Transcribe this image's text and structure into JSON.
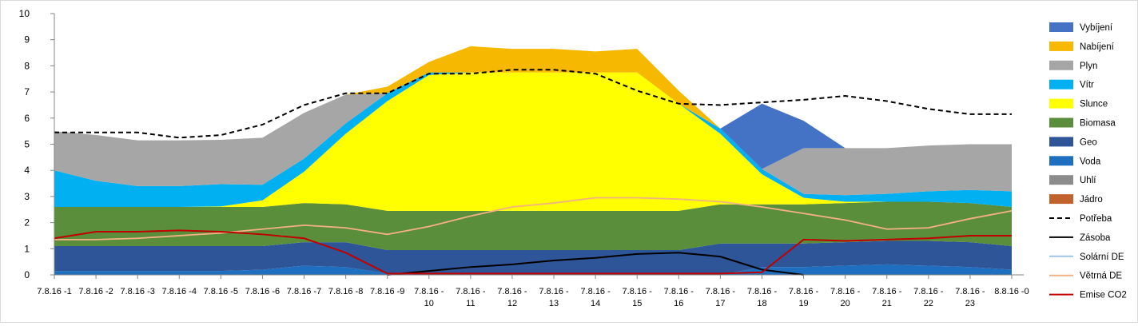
{
  "chart_data": {
    "type": "area",
    "title": "",
    "xlabel": "",
    "ylabel": "",
    "ylim": [
      0,
      10
    ],
    "yticks": [
      "0",
      "1",
      "2",
      "3",
      "4",
      "5",
      "6",
      "7",
      "8",
      "9",
      "10"
    ],
    "grid": false,
    "legend_position": "right",
    "categories": [
      [
        "7.8.16 -1"
      ],
      [
        "7.8.16 -2"
      ],
      [
        "7.8.16 -3"
      ],
      [
        "7.8.16 -4"
      ],
      [
        "7.8.16 -5"
      ],
      [
        "7.8.16 -6"
      ],
      [
        "7.8.16 -7"
      ],
      [
        "7.8.16 -8"
      ],
      [
        "7.8.16 -9"
      ],
      [
        "7.8.16 -",
        "10"
      ],
      [
        "7.8.16 -",
        "11"
      ],
      [
        "7.8.16 -",
        "12"
      ],
      [
        "7.8.16 -",
        "13"
      ],
      [
        "7.8.16 -",
        "14"
      ],
      [
        "7.8.16 -",
        "15"
      ],
      [
        "7.8.16 -",
        "16"
      ],
      [
        "7.8.16 -",
        "17"
      ],
      [
        "7.8.16 -",
        "18"
      ],
      [
        "7.8.16 -",
        "19"
      ],
      [
        "7.8.16 -",
        "20"
      ],
      [
        "7.8.16 -",
        "21"
      ],
      [
        "7.8.16 -",
        "22"
      ],
      [
        "7.8.16 -",
        "23"
      ],
      [
        "8.8.16 -0"
      ]
    ],
    "stacked_series": [
      {
        "name": "Jádro",
        "color": "#C0632C",
        "values": [
          0,
          0,
          0,
          0,
          0,
          0,
          0,
          0,
          0,
          0,
          0,
          0,
          0,
          0,
          0,
          0,
          0,
          0,
          0,
          0,
          0,
          0,
          0,
          0
        ]
      },
      {
        "name": "Uhlí",
        "color": "#8C8C8C",
        "values": [
          0,
          0,
          0,
          0,
          0,
          0,
          0,
          0,
          0,
          0,
          0,
          0,
          0,
          0,
          0,
          0,
          0,
          0,
          0,
          0,
          0,
          0,
          0,
          0
        ]
      },
      {
        "name": "Voda",
        "color": "#1F6FC0",
        "values": [
          0.15,
          0.15,
          0.15,
          0.15,
          0.15,
          0.2,
          0.35,
          0.3,
          0.05,
          0,
          0,
          0,
          0,
          0,
          0,
          0,
          0,
          0.3,
          0.3,
          0.35,
          0.4,
          0.35,
          0.3,
          0.2
        ]
      },
      {
        "name": "Geo",
        "color": "#2E5597",
        "values": [
          0.95,
          0.95,
          0.95,
          0.95,
          0.95,
          0.9,
          0.9,
          0.95,
          0.9,
          0.95,
          0.95,
          0.95,
          0.95,
          0.95,
          0.95,
          0.95,
          1.2,
          0.9,
          0.9,
          0.9,
          0.9,
          0.95,
          0.95,
          0.9
        ]
      },
      {
        "name": "Biomasa",
        "color": "#5B8E3A",
        "values": [
          1.5,
          1.5,
          1.5,
          1.5,
          1.5,
          1.5,
          1.5,
          1.45,
          1.5,
          1.5,
          1.5,
          1.5,
          1.5,
          1.5,
          1.5,
          1.5,
          1.5,
          1.5,
          1.5,
          1.5,
          1.5,
          1.5,
          1.5,
          1.5
        ]
      },
      {
        "name": "Slunce",
        "color": "#FFFF00",
        "values": [
          0,
          0,
          0,
          0,
          0.02,
          0.25,
          1.2,
          2.7,
          4.2,
          5.2,
          5.3,
          5.3,
          5.3,
          5.3,
          5.3,
          4.1,
          2.7,
          1.15,
          0.25,
          0.05,
          0,
          0,
          0,
          0
        ]
      },
      {
        "name": "Vítr",
        "color": "#00B0F0",
        "values": [
          1.4,
          1.0,
          0.8,
          0.8,
          0.85,
          0.6,
          0.5,
          0.4,
          0.3,
          0.1,
          0,
          0,
          0,
          0,
          0,
          0,
          0.2,
          0.2,
          0.15,
          0.25,
          0.3,
          0.4,
          0.5,
          0.6
        ]
      },
      {
        "name": "Plyn",
        "color": "#A6A6A6",
        "values": [
          1.5,
          1.75,
          1.75,
          1.75,
          1.7,
          1.8,
          1.75,
          1.1,
          0,
          0,
          0,
          0,
          0,
          0,
          0,
          0,
          0,
          0,
          1.75,
          1.8,
          1.75,
          1.75,
          1.75,
          1.8
        ]
      },
      {
        "name": "Vybíjení",
        "color": "#4472C4",
        "values": [
          0,
          0,
          0,
          0,
          0,
          0,
          0,
          0,
          0,
          0,
          0,
          0,
          0,
          0,
          0,
          0,
          0,
          2.5,
          1.05,
          0,
          0,
          0,
          0,
          0
        ]
      },
      {
        "name": "Nabíjení",
        "color": "#F6B800",
        "values": [
          0,
          0,
          0,
          0,
          0,
          0,
          0,
          0,
          0.25,
          0.4,
          1.0,
          0.9,
          0.9,
          0.8,
          0.9,
          0.5,
          0,
          0,
          0,
          0,
          0,
          0,
          0,
          0
        ]
      }
    ],
    "line_series": [
      {
        "name": "Potřeba",
        "color": "#000000",
        "dash": true,
        "values": [
          5.45,
          5.45,
          5.45,
          5.25,
          5.35,
          5.75,
          6.5,
          6.95,
          6.95,
          7.7,
          7.7,
          7.85,
          7.85,
          7.7,
          7.05,
          6.55,
          6.5,
          6.6,
          6.7,
          6.85,
          6.65,
          6.35,
          6.15,
          6.15
        ]
      },
      {
        "name": "Zásoba",
        "color": "#000000",
        "dash": false,
        "values": [
          null,
          null,
          null,
          null,
          null,
          null,
          null,
          null,
          0,
          0.15,
          0.3,
          0.4,
          0.55,
          0.65,
          0.8,
          0.85,
          0.7,
          0.2,
          0,
          null,
          null,
          null,
          null,
          null
        ]
      },
      {
        "name": "Solární DE",
        "color": "#9DC3E6",
        "dash": false,
        "values": []
      },
      {
        "name": "Větrná DE",
        "color": "#F4B183",
        "dash": false,
        "values": [
          1.35,
          1.35,
          1.4,
          1.5,
          1.6,
          1.75,
          1.9,
          1.8,
          1.55,
          1.85,
          2.25,
          2.6,
          2.75,
          2.95,
          2.95,
          2.9,
          2.8,
          2.6,
          2.35,
          2.1,
          1.75,
          1.8,
          2.15,
          2.45
        ]
      },
      {
        "name": "Emise CO2",
        "color": "#C00000",
        "dash": false,
        "values": [
          1.4,
          1.65,
          1.65,
          1.7,
          1.65,
          1.55,
          1.4,
          0.85,
          0.05,
          0.05,
          0.05,
          0.05,
          0.05,
          0.05,
          0.05,
          0.05,
          0.05,
          0.1,
          1.35,
          1.3,
          1.35,
          1.4,
          1.5,
          1.5
        ]
      }
    ],
    "legend": [
      {
        "name": "Vybíjení",
        "kind": "box",
        "color": "#4472C4"
      },
      {
        "name": "Nabíjení",
        "kind": "box",
        "color": "#F6B800"
      },
      {
        "name": "Plyn",
        "kind": "box",
        "color": "#A6A6A6"
      },
      {
        "name": "Vítr",
        "kind": "box",
        "color": "#00B0F0"
      },
      {
        "name": "Slunce",
        "kind": "box",
        "color": "#FFFF00"
      },
      {
        "name": "Biomasa",
        "kind": "box",
        "color": "#5B8E3A"
      },
      {
        "name": "Geo",
        "kind": "box",
        "color": "#2E5597"
      },
      {
        "name": "Voda",
        "kind": "box",
        "color": "#1F6FC0"
      },
      {
        "name": "Uhlí",
        "kind": "box",
        "color": "#8C8C8C"
      },
      {
        "name": "Jádro",
        "kind": "box",
        "color": "#C0632C"
      },
      {
        "name": "Potřeba",
        "kind": "dash",
        "color": "#000000"
      },
      {
        "name": "Zásoba",
        "kind": "line",
        "color": "#000000"
      },
      {
        "name": "Solární DE",
        "kind": "line",
        "color": "#9DC3E6"
      },
      {
        "name": "Větrná DE",
        "kind": "line",
        "color": "#F4B183"
      },
      {
        "name": "Emise CO2",
        "kind": "line",
        "color": "#C00000"
      }
    ]
  }
}
